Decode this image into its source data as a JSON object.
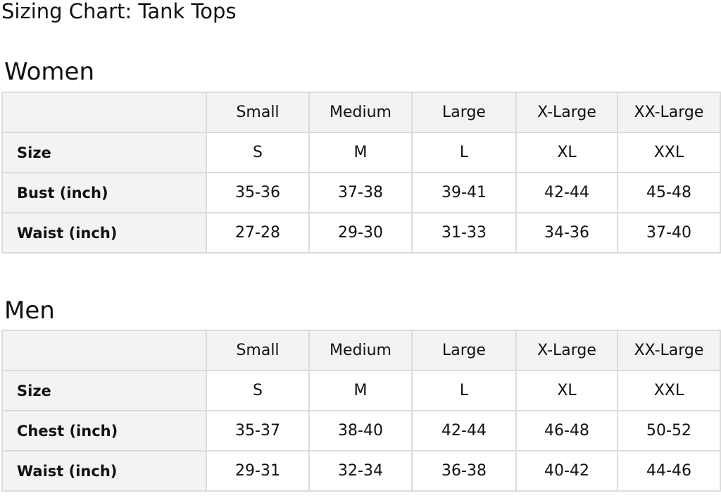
{
  "title": "Sizing Chart: Tank Tops",
  "tables": [
    {
      "heading": "Women",
      "columns": [
        "",
        "Small",
        "Medium",
        "Large",
        "X-Large",
        "XX-Large"
      ],
      "rows": [
        {
          "label": "Size",
          "values": [
            "S",
            "M",
            "L",
            "XL",
            "XXL"
          ]
        },
        {
          "label": "Bust (inch)",
          "values": [
            "35-36",
            "37-38",
            "39-41",
            "42-44",
            "45-48"
          ]
        },
        {
          "label": "Waist (inch)",
          "values": [
            "27-28",
            "29-30",
            "31-33",
            "34-36",
            "37-40"
          ]
        }
      ]
    },
    {
      "heading": "Men",
      "columns": [
        "",
        "Small",
        "Medium",
        "Large",
        "X-Large",
        "XX-Large"
      ],
      "rows": [
        {
          "label": "Size",
          "values": [
            "S",
            "M",
            "L",
            "XL",
            "XXL"
          ]
        },
        {
          "label": "Chest (inch)",
          "values": [
            "35-37",
            "38-40",
            "42-44",
            "46-48",
            "50-52"
          ]
        },
        {
          "label": "Waist (inch)",
          "values": [
            "29-31",
            "32-34",
            "36-38",
            "40-42",
            "44-46"
          ]
        }
      ]
    }
  ]
}
